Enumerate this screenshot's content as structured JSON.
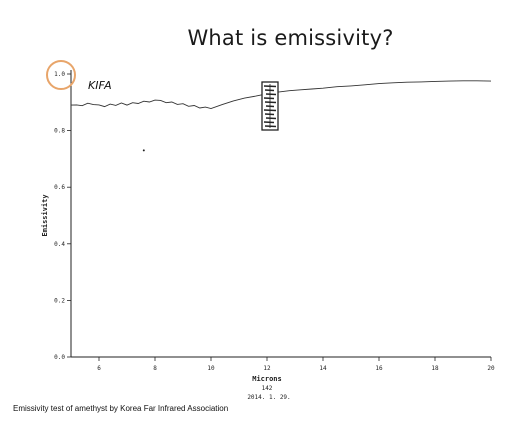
{
  "slide": {
    "title": "What is emissivity?",
    "caption": "Emissivity test of amethyst by Korea Far Infrared Association"
  },
  "chart_data": {
    "type": "line",
    "logo_text": "KIFA",
    "xlabel": "Microns",
    "ylabel": "Emissivity",
    "xlim": [
      5,
      20
    ],
    "ylim": [
      0,
      1.0
    ],
    "x_ticks": [
      6,
      8,
      10,
      12,
      14,
      16,
      18,
      20
    ],
    "y_ticks": [
      0.0,
      0.2,
      0.4,
      0.6,
      0.8,
      1.0
    ],
    "y_tick_labels": [
      "0.0",
      "0.2",
      "0.4",
      "0.6",
      "0.8",
      "1.0"
    ],
    "footer": [
      "142",
      "2014. 1. 29."
    ],
    "highlight_color": "#e8a56a",
    "line_color": "#333333",
    "series": [
      {
        "x": [
          5.0,
          5.2,
          5.4,
          5.6,
          5.8,
          6.0,
          6.2,
          6.4,
          6.6,
          6.8,
          7.0,
          7.2,
          7.4,
          7.6,
          7.8,
          8.0,
          8.2,
          8.4,
          8.6,
          8.8,
          9.0,
          9.2,
          9.4,
          9.6,
          9.8,
          10.0,
          10.4,
          10.8,
          11.2,
          11.6,
          12.0,
          12.4,
          12.8,
          13.2,
          13.6,
          14.0,
          14.5,
          15.0,
          15.5,
          16.0,
          16.5,
          17.0,
          17.5,
          18.0,
          18.5,
          19.0,
          19.5,
          20.0
        ],
        "y": [
          0.89,
          0.895,
          0.885,
          0.9,
          0.888,
          0.893,
          0.883,
          0.897,
          0.886,
          0.899,
          0.89,
          0.903,
          0.893,
          0.907,
          0.897,
          0.91,
          0.905,
          0.902,
          0.898,
          0.894,
          0.895,
          0.89,
          0.886,
          0.883,
          0.879,
          0.878,
          0.892,
          0.905,
          0.915,
          0.922,
          0.93,
          0.936,
          0.941,
          0.944,
          0.947,
          0.95,
          0.955,
          0.958,
          0.962,
          0.966,
          0.969,
          0.971,
          0.972,
          0.974,
          0.975,
          0.976,
          0.976,
          0.975
        ]
      }
    ]
  }
}
